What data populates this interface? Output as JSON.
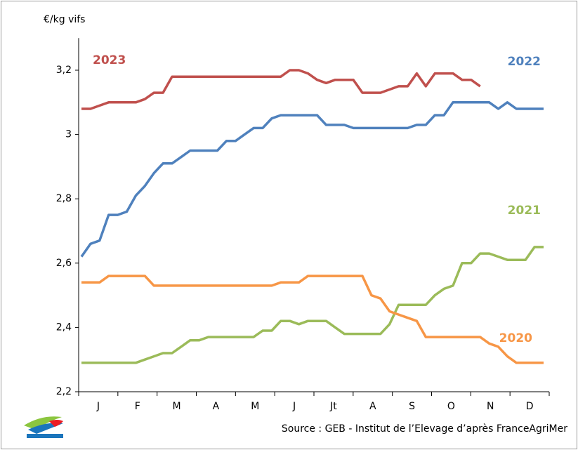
{
  "chart_data": {
    "type": "line",
    "y_label": "€/kg vifs",
    "source": "Source : GEB - Institut de l’Elevage d’après FranceAgriMer",
    "months": [
      "J",
      "F",
      "M",
      "A",
      "M",
      "J",
      "Jt",
      "A",
      "S",
      "O",
      "N",
      "D"
    ],
    "ylim": [
      2.2,
      3.3
    ],
    "yticks": [
      {
        "value": 2.2,
        "label": "2,2"
      },
      {
        "value": 2.4,
        "label": "2,4"
      },
      {
        "value": 2.6,
        "label": "2,6"
      },
      {
        "value": 2.8,
        "label": "2,8"
      },
      {
        "value": 3,
        "label": "3"
      },
      {
        "value": 3.2,
        "label": "3,2"
      }
    ],
    "series": [
      {
        "name": "2023",
        "color": "#c0504d",
        "values": [
          3.08,
          3.08,
          3.09,
          3.1,
          3.1,
          3.1,
          3.1,
          3.11,
          3.13,
          3.13,
          3.18,
          3.18,
          3.18,
          3.18,
          3.18,
          3.18,
          3.18,
          3.18,
          3.18,
          3.18,
          3.18,
          3.18,
          3.18,
          3.2,
          3.2,
          3.19,
          3.17,
          3.16,
          3.17,
          3.17,
          3.17,
          3.13,
          3.13,
          3.13,
          3.14,
          3.15,
          3.15,
          3.19,
          3.15,
          3.19,
          3.19,
          3.19,
          3.17,
          3.17,
          3.15,
          null,
          null,
          null,
          null,
          null,
          null,
          null
        ]
      },
      {
        "name": "2022",
        "color": "#4f81bd",
        "values": [
          2.62,
          2.66,
          2.67,
          2.75,
          2.75,
          2.76,
          2.81,
          2.84,
          2.88,
          2.91,
          2.91,
          2.93,
          2.95,
          2.95,
          2.95,
          2.95,
          2.98,
          2.98,
          3.0,
          3.02,
          3.02,
          3.05,
          3.06,
          3.06,
          3.06,
          3.06,
          3.06,
          3.03,
          3.03,
          3.03,
          3.02,
          3.02,
          3.02,
          3.02,
          3.02,
          3.02,
          3.02,
          3.03,
          3.03,
          3.06,
          3.06,
          3.1,
          3.1,
          3.1,
          3.1,
          3.1,
          3.08,
          3.1,
          3.08,
          3.08,
          3.08,
          3.08
        ]
      },
      {
        "name": "2021",
        "color": "#9bbb59",
        "values": [
          2.29,
          2.29,
          2.29,
          2.29,
          2.29,
          2.29,
          2.29,
          2.3,
          2.31,
          2.32,
          2.32,
          2.34,
          2.36,
          2.36,
          2.37,
          2.37,
          2.37,
          2.37,
          2.37,
          2.37,
          2.39,
          2.39,
          2.42,
          2.42,
          2.41,
          2.42,
          2.42,
          2.42,
          2.4,
          2.38,
          2.38,
          2.38,
          2.38,
          2.38,
          2.41,
          2.47,
          2.47,
          2.47,
          2.47,
          2.5,
          2.52,
          2.53,
          2.6,
          2.6,
          2.63,
          2.63,
          2.62,
          2.61,
          2.61,
          2.61,
          2.65,
          2.65
        ]
      },
      {
        "name": "2020",
        "color": "#f79646",
        "values": [
          2.54,
          2.54,
          2.54,
          2.56,
          2.56,
          2.56,
          2.56,
          2.56,
          2.53,
          2.53,
          2.53,
          2.53,
          2.53,
          2.53,
          2.53,
          2.53,
          2.53,
          2.53,
          2.53,
          2.53,
          2.53,
          2.53,
          2.54,
          2.54,
          2.54,
          2.56,
          2.56,
          2.56,
          2.56,
          2.56,
          2.56,
          2.56,
          2.5,
          2.49,
          2.45,
          2.44,
          2.43,
          2.42,
          2.37,
          2.37,
          2.37,
          2.37,
          2.37,
          2.37,
          2.37,
          2.35,
          2.34,
          2.31,
          2.29,
          2.29,
          2.29,
          2.29
        ]
      }
    ]
  }
}
